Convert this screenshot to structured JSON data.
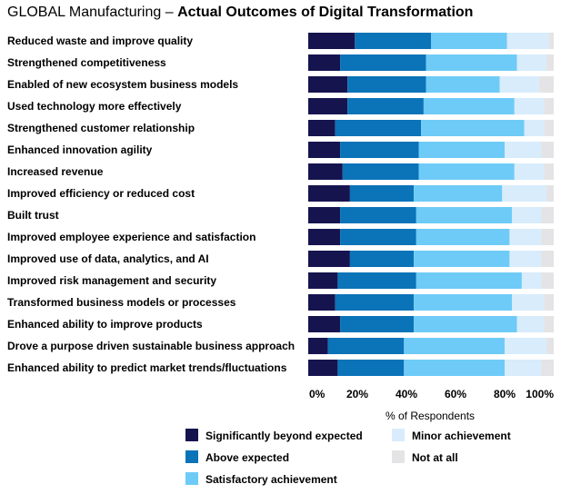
{
  "title": {
    "prefix": "GLOBAL Manufacturing – ",
    "main": "Actual Outcomes of Digital Transformation"
  },
  "chart_data": {
    "type": "bar",
    "orientation": "horizontal",
    "stacked": true,
    "categories": [
      "Reduced waste and improve quality",
      "Strengthened competitiveness",
      "Enabled of new ecosystem business models",
      "Used technology more effectively",
      "Strengthened customer relationship",
      "Enhanced innovation agility",
      "Increased revenue",
      "Improved efficiency or reduced cost",
      "Built trust",
      "Improved employee experience and satisfaction",
      "Improved use of data, analytics, and AI",
      "Improved risk management and security",
      "Transformed business models or processes",
      "Enhanced ability to improve products",
      "Drove a purpose driven sustainable business approach",
      "Enhanced ability to predict market trends/fluctuations"
    ],
    "series": [
      {
        "name": "Significantly beyond expected",
        "color": "#16144f",
        "values": [
          19,
          13,
          16,
          16,
          11,
          13,
          14,
          17,
          13,
          13,
          17,
          12,
          11,
          13,
          8,
          12
        ]
      },
      {
        "name": "Above expected",
        "color": "#0b73b8",
        "values": [
          31,
          35,
          32,
          31,
          35,
          32,
          31,
          26,
          31,
          31,
          26,
          32,
          32,
          30,
          31,
          27
        ]
      },
      {
        "name": "Satisfactory achievement",
        "color": "#6ecbf7",
        "values": [
          31,
          37,
          30,
          37,
          42,
          35,
          39,
          36,
          39,
          38,
          39,
          43,
          40,
          42,
          41,
          41
        ]
      },
      {
        "name": "Minor achievement",
        "color": "#d8ecfc",
        "values": [
          17,
          12,
          16,
          12,
          8,
          15,
          12,
          18,
          12,
          13,
          13,
          8,
          13,
          11,
          17,
          15
        ]
      },
      {
        "name": "Not at all",
        "color": "#e4e4e6",
        "values": [
          2,
          3,
          6,
          4,
          4,
          5,
          4,
          3,
          5,
          5,
          5,
          5,
          4,
          4,
          3,
          5
        ]
      }
    ],
    "x": {
      "label": "% of Respondents",
      "ticks": [
        "0%",
        "20%",
        "40%",
        "60%",
        "80%",
        "100%"
      ],
      "range": [
        0,
        100
      ]
    },
    "legend_position": "bottom",
    "grid": false
  }
}
